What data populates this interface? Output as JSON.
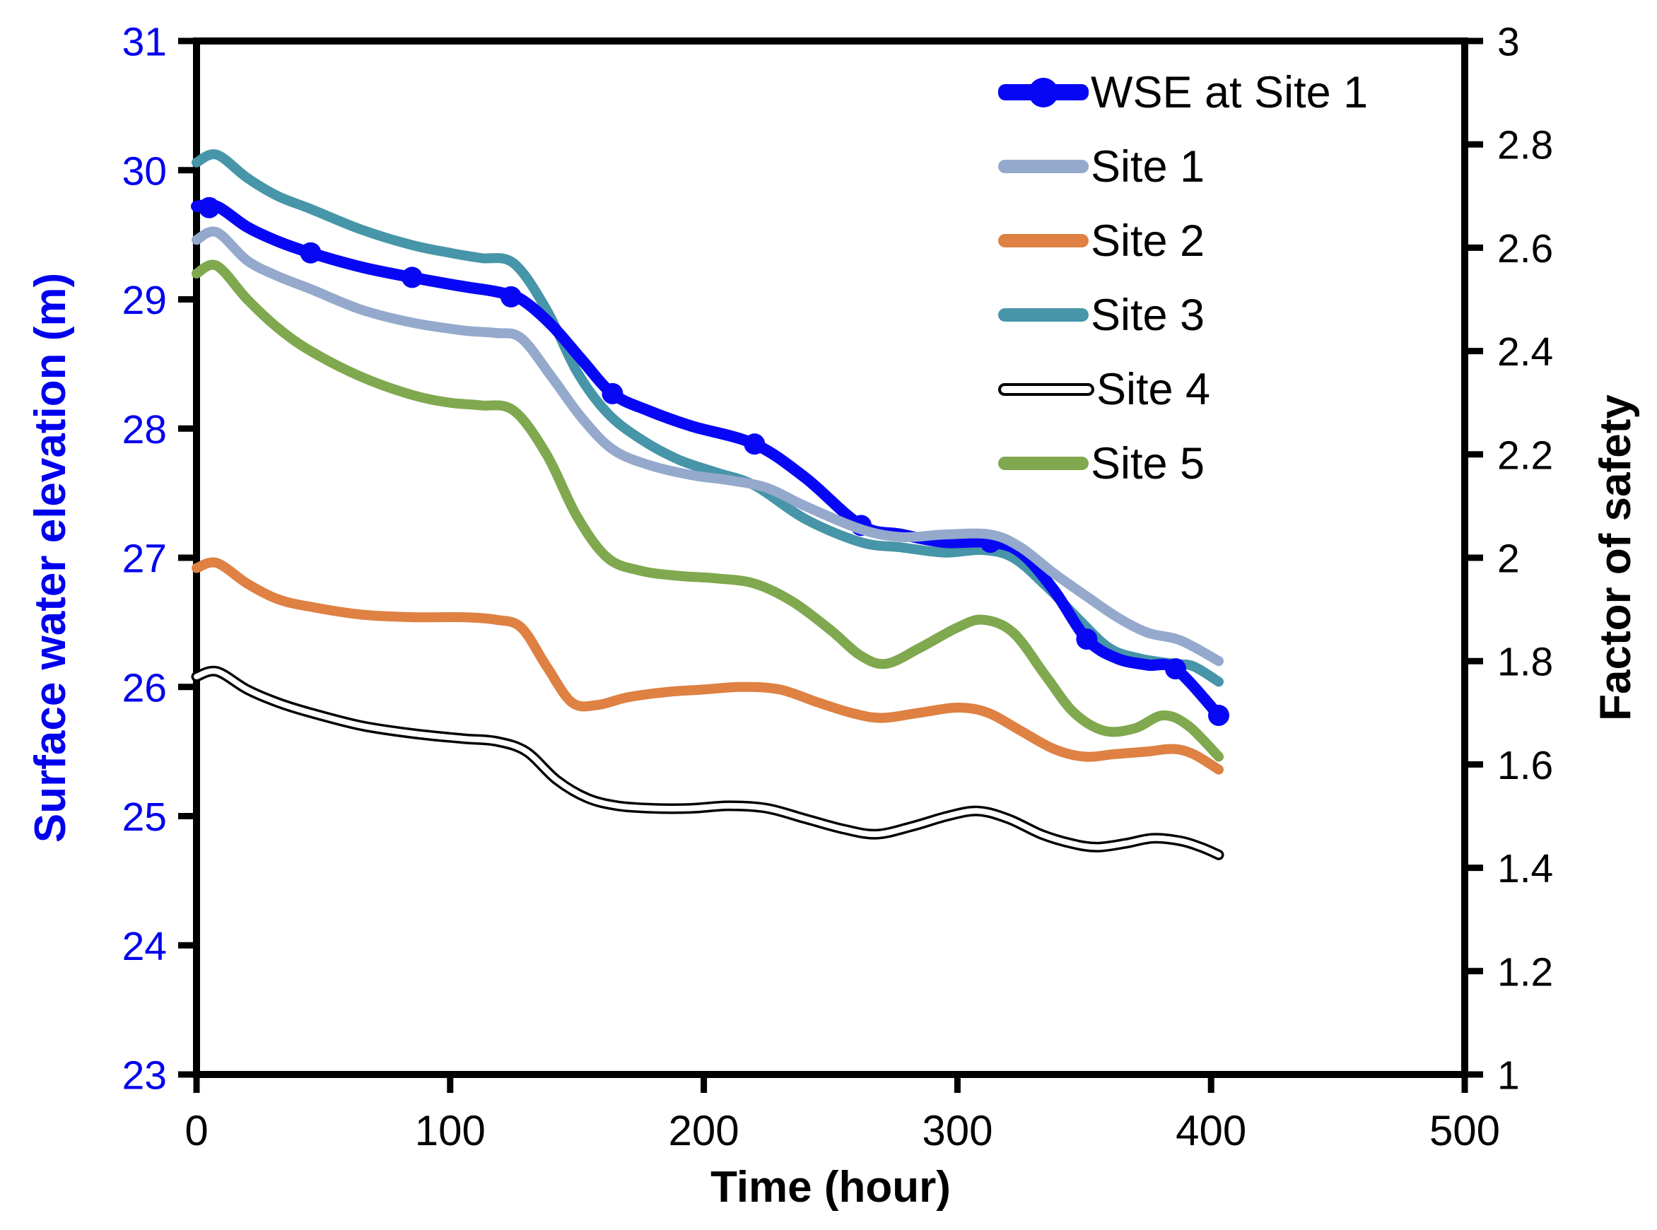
{
  "chart_data": {
    "type": "line",
    "title": "",
    "grid": false,
    "legend_position": "top-right-inside",
    "x_axis": {
      "label": "Time (hour)",
      "min": 0,
      "max": 500,
      "ticks": [
        0,
        100,
        200,
        300,
        400,
        500
      ]
    },
    "y_left": {
      "label": "Surface water elevation (m)",
      "min": 23,
      "max": 31,
      "color": "#0000EE",
      "ticks": [
        31,
        30,
        29,
        28,
        27,
        26,
        25,
        24,
        23
      ]
    },
    "y_right": {
      "label": "Factor of safety",
      "min": 1,
      "max": 3,
      "ticks": [
        {
          "v": 3,
          "label": "3"
        },
        {
          "v": 2.8,
          "label": "2.8"
        },
        {
          "v": 2.6,
          "label": "2.6"
        },
        {
          "v": 2.4,
          "label": "2.4"
        },
        {
          "v": 2.2,
          "label": "2.2"
        },
        {
          "v": 2,
          "label": "2"
        },
        {
          "v": 1.8,
          "label": "1.8"
        },
        {
          "v": 1.6,
          "label": "1.6"
        },
        {
          "v": 1.4,
          "label": "1.4"
        },
        {
          "v": 1.2,
          "label": "1.2"
        },
        {
          "v": 1,
          "label": "1"
        }
      ]
    },
    "series": [
      {
        "name": "WSE at Site 1",
        "axis": "left",
        "color": "#0707F5",
        "width": 16,
        "style": "solid",
        "markers": [
          [
            5,
            29.71
          ],
          [
            45,
            29.36
          ],
          [
            85,
            29.17
          ],
          [
            124,
            29.02
          ],
          [
            164,
            28.27
          ],
          [
            220,
            27.88
          ],
          [
            262,
            27.25
          ],
          [
            313,
            27.12
          ],
          [
            351,
            26.37
          ],
          [
            386,
            26.14
          ],
          [
            403,
            25.78
          ]
        ],
        "marker_radius": 15,
        "points": [
          [
            0,
            29.72
          ],
          [
            8,
            29.72
          ],
          [
            20,
            29.56
          ],
          [
            32,
            29.45
          ],
          [
            45,
            29.36
          ],
          [
            65,
            29.25
          ],
          [
            85,
            29.17
          ],
          [
            105,
            29.1
          ],
          [
            118,
            29.06
          ],
          [
            128,
            29.0
          ],
          [
            140,
            28.8
          ],
          [
            152,
            28.53
          ],
          [
            164,
            28.27
          ],
          [
            178,
            28.14
          ],
          [
            195,
            28.02
          ],
          [
            220,
            27.88
          ],
          [
            240,
            27.62
          ],
          [
            262,
            27.25
          ],
          [
            278,
            27.18
          ],
          [
            295,
            27.12
          ],
          [
            313,
            27.12
          ],
          [
            325,
            27.04
          ],
          [
            338,
            26.75
          ],
          [
            351,
            26.37
          ],
          [
            363,
            26.22
          ],
          [
            375,
            26.17
          ],
          [
            386,
            26.14
          ],
          [
            403,
            25.78
          ]
        ]
      },
      {
        "name": "Site 1",
        "axis": "right",
        "color": "#94A9CC",
        "width": 14,
        "style": "solid",
        "points": [
          [
            0,
            2.615
          ],
          [
            8,
            2.63
          ],
          [
            20,
            2.575
          ],
          [
            32,
            2.545
          ],
          [
            45,
            2.52
          ],
          [
            65,
            2.48
          ],
          [
            85,
            2.455
          ],
          [
            105,
            2.44
          ],
          [
            118,
            2.435
          ],
          [
            128,
            2.425
          ],
          [
            140,
            2.35
          ],
          [
            152,
            2.27
          ],
          [
            164,
            2.21
          ],
          [
            178,
            2.18
          ],
          [
            195,
            2.16
          ],
          [
            210,
            2.15
          ],
          [
            225,
            2.135
          ],
          [
            240,
            2.1
          ],
          [
            262,
            2.055
          ],
          [
            278,
            2.04
          ],
          [
            295,
            2.045
          ],
          [
            313,
            2.045
          ],
          [
            325,
            2.02
          ],
          [
            338,
            1.97
          ],
          [
            351,
            1.925
          ],
          [
            363,
            1.885
          ],
          [
            375,
            1.855
          ],
          [
            388,
            1.84
          ],
          [
            403,
            1.8
          ]
        ]
      },
      {
        "name": "Site 2",
        "axis": "right",
        "color": "#DE8142",
        "width": 14,
        "style": "solid",
        "points": [
          [
            0,
            1.98
          ],
          [
            8,
            1.99
          ],
          [
            20,
            1.95
          ],
          [
            32,
            1.92
          ],
          [
            45,
            1.905
          ],
          [
            65,
            1.89
          ],
          [
            85,
            1.885
          ],
          [
            105,
            1.885
          ],
          [
            118,
            1.88
          ],
          [
            128,
            1.865
          ],
          [
            138,
            1.79
          ],
          [
            148,
            1.72
          ],
          [
            158,
            1.715
          ],
          [
            170,
            1.73
          ],
          [
            185,
            1.74
          ],
          [
            200,
            1.745
          ],
          [
            215,
            1.75
          ],
          [
            230,
            1.745
          ],
          [
            245,
            1.72
          ],
          [
            258,
            1.7
          ],
          [
            270,
            1.69
          ],
          [
            285,
            1.7
          ],
          [
            300,
            1.71
          ],
          [
            312,
            1.7
          ],
          [
            325,
            1.665
          ],
          [
            338,
            1.63
          ],
          [
            350,
            1.615
          ],
          [
            362,
            1.62
          ],
          [
            375,
            1.625
          ],
          [
            385,
            1.63
          ],
          [
            393,
            1.62
          ],
          [
            403,
            1.59
          ]
        ]
      },
      {
        "name": "Site 3",
        "axis": "right",
        "color": "#4795A8",
        "width": 14,
        "style": "solid",
        "points": [
          [
            0,
            2.765
          ],
          [
            8,
            2.78
          ],
          [
            20,
            2.735
          ],
          [
            32,
            2.7
          ],
          [
            45,
            2.675
          ],
          [
            65,
            2.635
          ],
          [
            85,
            2.605
          ],
          [
            100,
            2.59
          ],
          [
            112,
            2.58
          ],
          [
            125,
            2.57
          ],
          [
            138,
            2.48
          ],
          [
            150,
            2.36
          ],
          [
            162,
            2.28
          ],
          [
            175,
            2.23
          ],
          [
            190,
            2.19
          ],
          [
            205,
            2.165
          ],
          [
            220,
            2.14
          ],
          [
            240,
            2.075
          ],
          [
            262,
            2.03
          ],
          [
            278,
            2.02
          ],
          [
            295,
            2.01
          ],
          [
            310,
            2.015
          ],
          [
            322,
            2.0
          ],
          [
            335,
            1.945
          ],
          [
            348,
            1.88
          ],
          [
            360,
            1.825
          ],
          [
            372,
            1.805
          ],
          [
            385,
            1.795
          ],
          [
            393,
            1.79
          ],
          [
            403,
            1.76
          ]
        ]
      },
      {
        "name": "Site 4",
        "axis": "right",
        "color": "#000000",
        "width": 15,
        "style": "outline",
        "inner_color": "#FFFFFF",
        "inner_width": 8,
        "points": [
          [
            0,
            1.77
          ],
          [
            8,
            1.78
          ],
          [
            20,
            1.745
          ],
          [
            32,
            1.72
          ],
          [
            45,
            1.7
          ],
          [
            65,
            1.675
          ],
          [
            85,
            1.66
          ],
          [
            105,
            1.65
          ],
          [
            118,
            1.645
          ],
          [
            130,
            1.625
          ],
          [
            142,
            1.57
          ],
          [
            154,
            1.535
          ],
          [
            166,
            1.52
          ],
          [
            180,
            1.515
          ],
          [
            195,
            1.515
          ],
          [
            210,
            1.52
          ],
          [
            225,
            1.515
          ],
          [
            240,
            1.495
          ],
          [
            255,
            1.475
          ],
          [
            268,
            1.465
          ],
          [
            282,
            1.48
          ],
          [
            296,
            1.5
          ],
          [
            308,
            1.51
          ],
          [
            320,
            1.495
          ],
          [
            333,
            1.465
          ],
          [
            345,
            1.447
          ],
          [
            355,
            1.44
          ],
          [
            366,
            1.447
          ],
          [
            377,
            1.457
          ],
          [
            388,
            1.452
          ],
          [
            396,
            1.44
          ],
          [
            403,
            1.425
          ]
        ]
      },
      {
        "name": "Site 5",
        "axis": "right",
        "color": "#80A84F",
        "width": 14,
        "style": "solid",
        "points": [
          [
            0,
            2.55
          ],
          [
            8,
            2.565
          ],
          [
            20,
            2.5
          ],
          [
            32,
            2.445
          ],
          [
            45,
            2.4
          ],
          [
            65,
            2.35
          ],
          [
            85,
            2.315
          ],
          [
            100,
            2.3
          ],
          [
            112,
            2.295
          ],
          [
            125,
            2.285
          ],
          [
            138,
            2.2
          ],
          [
            150,
            2.08
          ],
          [
            162,
            2.0
          ],
          [
            175,
            1.975
          ],
          [
            190,
            1.965
          ],
          [
            205,
            1.96
          ],
          [
            220,
            1.95
          ],
          [
            235,
            1.915
          ],
          [
            250,
            1.86
          ],
          [
            262,
            1.81
          ],
          [
            272,
            1.795
          ],
          [
            285,
            1.825
          ],
          [
            300,
            1.865
          ],
          [
            310,
            1.88
          ],
          [
            322,
            1.855
          ],
          [
            335,
            1.77
          ],
          [
            346,
            1.7
          ],
          [
            358,
            1.665
          ],
          [
            370,
            1.67
          ],
          [
            381,
            1.695
          ],
          [
            391,
            1.675
          ],
          [
            403,
            1.615
          ]
        ]
      }
    ]
  }
}
